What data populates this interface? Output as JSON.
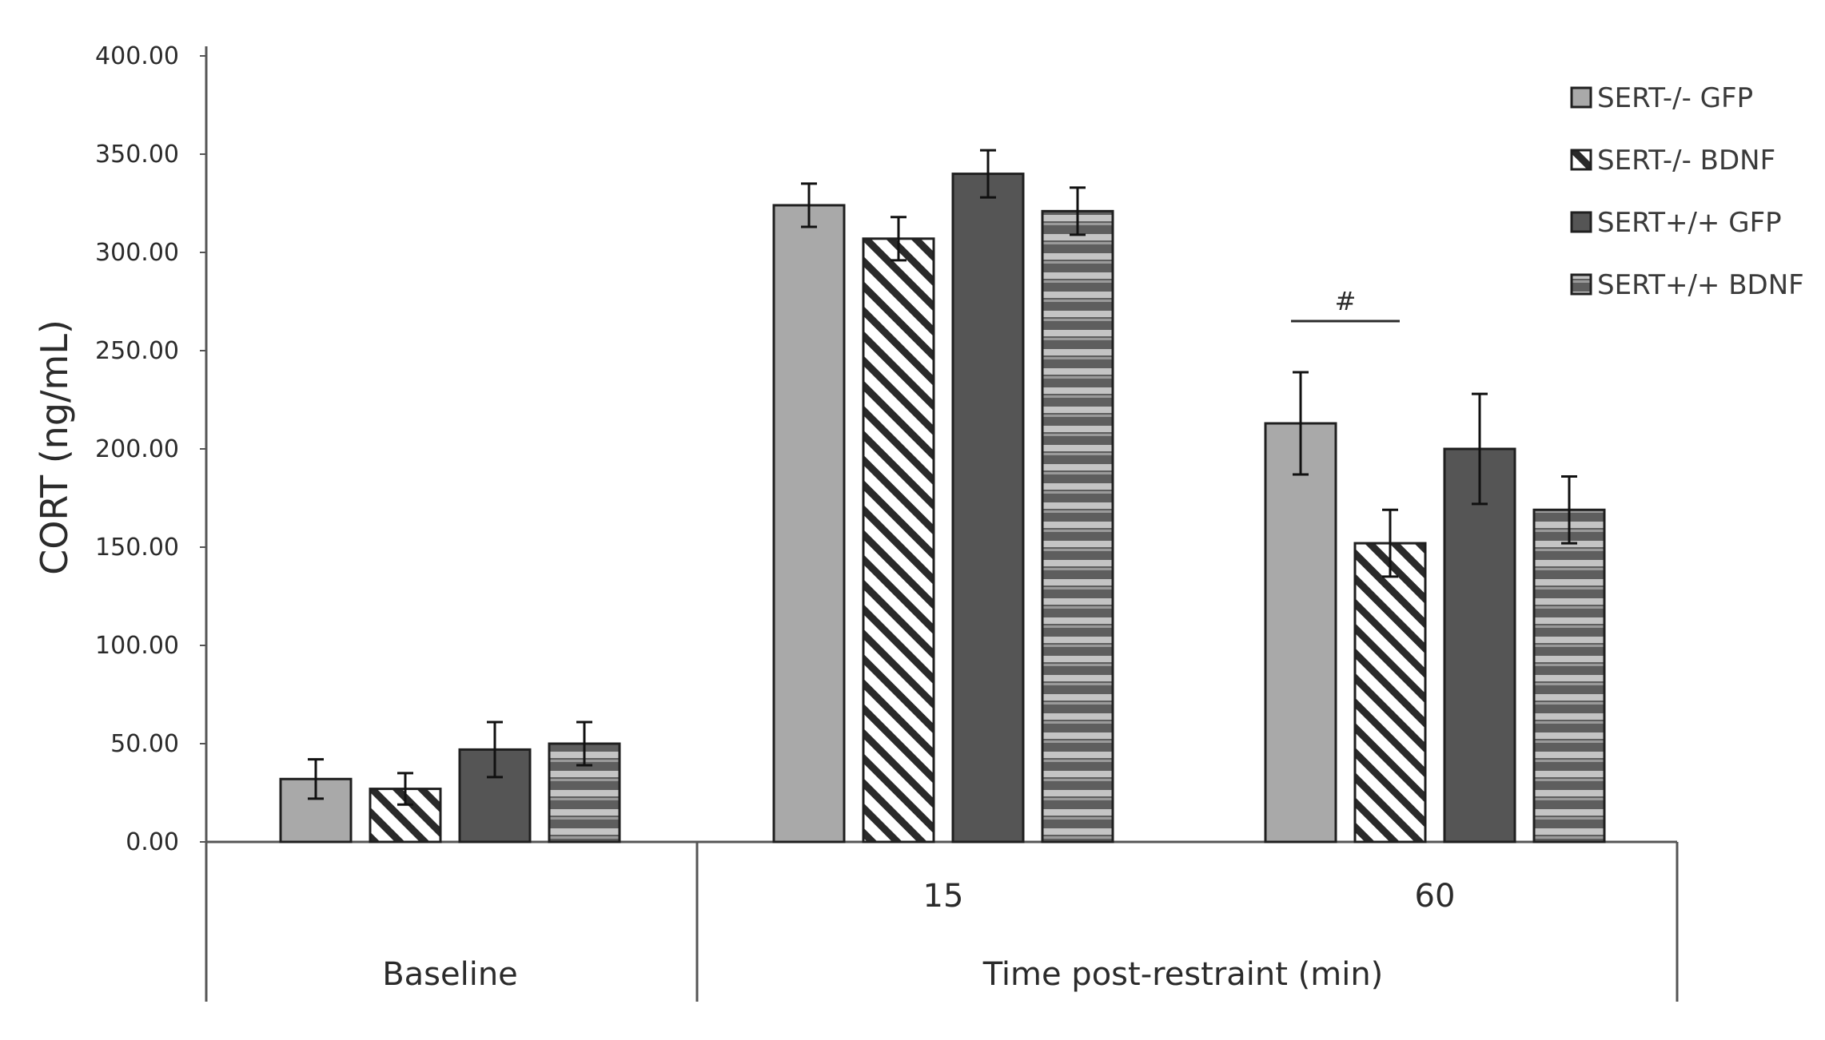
{
  "chart_data": {
    "type": "bar",
    "title": "",
    "ylabel": "CORT (ng/mL)",
    "xlabel": "Time post-restraint (min)",
    "ylim": [
      0,
      400
    ],
    "yticks": [
      "0.00",
      "50.00",
      "100.00",
      "150.00",
      "200.00",
      "250.00",
      "300.00",
      "350.00",
      "400.00"
    ],
    "ytick_values": [
      0,
      50,
      100,
      150,
      200,
      250,
      300,
      350,
      400
    ],
    "categories": [
      "Baseline",
      "15",
      "60"
    ],
    "series": [
      {
        "name": "SERT-/- GFP",
        "values": [
          32,
          324,
          213
        ],
        "errors": [
          10,
          11,
          26
        ],
        "fill": "#a9a9a9",
        "pattern": "solid"
      },
      {
        "name": "SERT-/- BDNF",
        "values": [
          27,
          307,
          152
        ],
        "errors": [
          8,
          11,
          17
        ],
        "fill": "#ffffff",
        "pattern": "diagonal"
      },
      {
        "name": "SERT+/+ GFP",
        "values": [
          47,
          340,
          200
        ],
        "errors": [
          14,
          12,
          28
        ],
        "fill": "#555555",
        "pattern": "solid"
      },
      {
        "name": "SERT+/+ BDNF",
        "values": [
          50,
          321,
          169
        ],
        "errors": [
          11,
          12,
          17
        ],
        "fill": "#5e5e5e",
        "pattern": "horizontal-stripes"
      }
    ],
    "annotations": [
      {
        "text": "#",
        "category": "60",
        "between_series": [
          0,
          1
        ]
      }
    ],
    "legend_position": "top-right",
    "grid": false
  }
}
